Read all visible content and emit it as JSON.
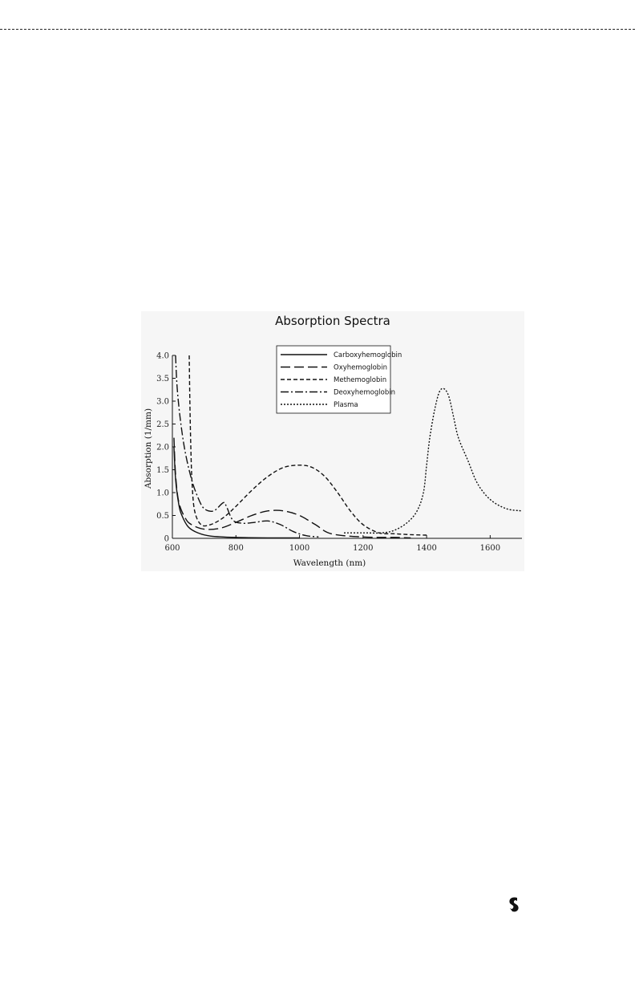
{
  "chart_data": {
    "type": "line",
    "title": "Absorption Spectra",
    "xlabel": "Wavelength (nm)",
    "ylabel": "Absorption (1/mm)",
    "xlim": [
      600,
      1700
    ],
    "ylim": [
      0,
      4.0
    ],
    "x_ticks": [
      "600",
      "800",
      "1000",
      "1200",
      "1400",
      "1600"
    ],
    "y_ticks": [
      "0",
      "0.5",
      "1.0",
      "1.5",
      "2.0",
      "2.5",
      "3.0",
      "3.5",
      "4.0"
    ],
    "grid": false,
    "legend_position": "top-center",
    "series": [
      {
        "name": "Carboxyhemoglobin",
        "style": "solid",
        "x": [
          605,
          610,
          620,
          630,
          650,
          680,
          720,
          800,
          900,
          1000
        ],
        "y": [
          2.0,
          1.3,
          0.75,
          0.5,
          0.25,
          0.12,
          0.05,
          0.02,
          0.01,
          0.01
        ]
      },
      {
        "name": "Oxyhemoglobin",
        "style": "long-dash",
        "x": [
          605,
          610,
          620,
          640,
          660,
          700,
          750,
          800,
          850,
          900,
          950,
          1000,
          1050,
          1100,
          1200,
          1300,
          1350
        ],
        "y": [
          2.2,
          1.4,
          0.8,
          0.45,
          0.3,
          0.2,
          0.22,
          0.35,
          0.5,
          0.6,
          0.6,
          0.5,
          0.3,
          0.1,
          0.03,
          0.02,
          0.01
        ]
      },
      {
        "name": "Methemoglobin",
        "style": "medium-dash",
        "x": [
          653,
          655,
          658,
          662,
          670,
          690,
          720,
          760,
          800,
          850,
          900,
          950,
          1000,
          1040,
          1080,
          1120,
          1160,
          1200,
          1250,
          1300,
          1350,
          1400
        ],
        "y": [
          4.0,
          3.0,
          2.0,
          1.2,
          0.6,
          0.3,
          0.3,
          0.45,
          0.7,
          1.05,
          1.35,
          1.55,
          1.6,
          1.55,
          1.35,
          1.0,
          0.6,
          0.3,
          0.12,
          0.1,
          0.08,
          0.07
        ]
      },
      {
        "name": "Deoxyhemoglobin",
        "style": "dash-dot",
        "x": [
          610,
          615,
          625,
          640,
          660,
          680,
          700,
          730,
          760,
          770,
          790,
          820,
          860,
          900,
          940,
          980,
          1020,
          1060
        ],
        "y": [
          4.0,
          3.3,
          2.6,
          1.9,
          1.3,
          0.9,
          0.65,
          0.6,
          0.78,
          0.7,
          0.4,
          0.33,
          0.35,
          0.38,
          0.3,
          0.15,
          0.06,
          0.03
        ]
      },
      {
        "name": "Plasma",
        "style": "dotted",
        "x": [
          1140,
          1200,
          1260,
          1300,
          1340,
          1370,
          1390,
          1400,
          1410,
          1425,
          1440,
          1455,
          1470,
          1485,
          1500,
          1530,
          1560,
          1600,
          1650,
          1700
        ],
        "y": [
          0.12,
          0.12,
          0.12,
          0.18,
          0.35,
          0.6,
          1.0,
          1.6,
          2.2,
          2.8,
          3.2,
          3.27,
          3.1,
          2.65,
          2.2,
          1.7,
          1.2,
          0.85,
          0.65,
          0.6
        ]
      }
    ]
  },
  "colors": {
    "line": "#111111",
    "figure_background": "#f6f6f6",
    "page_background": "#ffffff"
  },
  "icons": {
    "footer_logo": "brand-logo-icon"
  }
}
